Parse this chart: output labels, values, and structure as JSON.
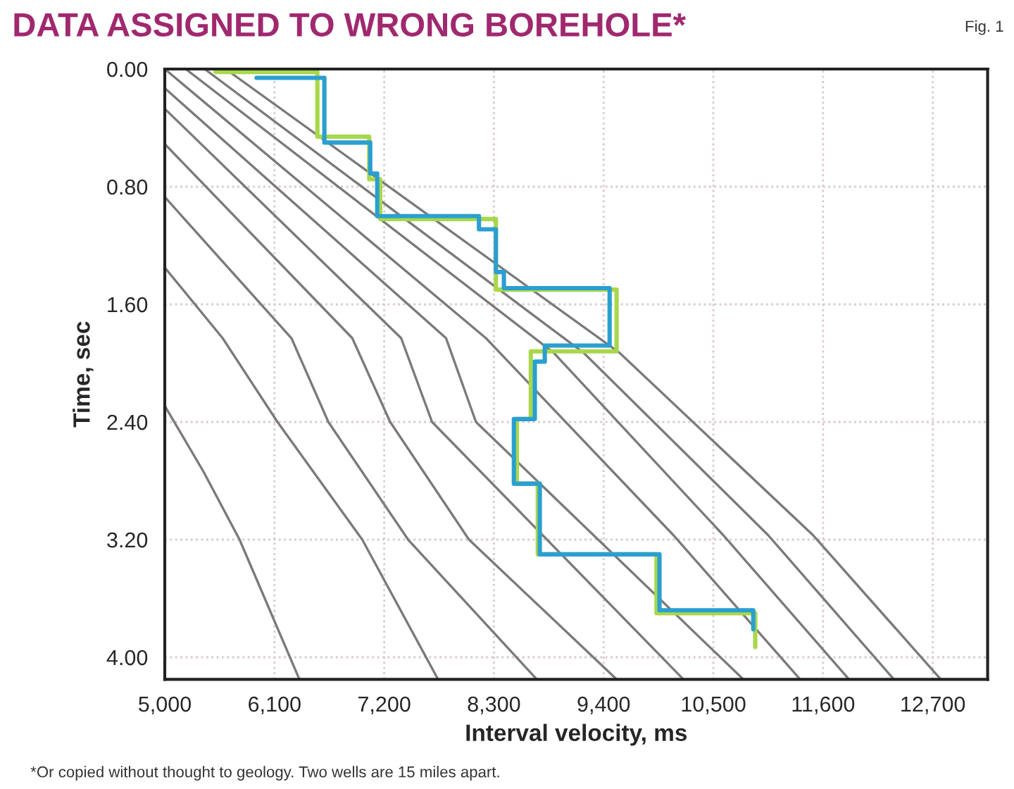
{
  "chart_data": {
    "type": "line",
    "title": "DATA ASSIGNED TO WRONG BOREHOLE*",
    "xlabel": "Interval velocity, ms",
    "ylabel": "Time, sec",
    "annotations": [
      "Fig. 1",
      "*Or copied without thought to geology. Two wells are 15 miles apart."
    ],
    "xlim": [
      5000,
      13250
    ],
    "ylim": [
      4.15,
      0
    ],
    "xticks": [
      {
        "value": 5000,
        "label": "5,000"
      },
      {
        "value": 6100,
        "label": "6,100"
      },
      {
        "value": 7200,
        "label": "7,200"
      },
      {
        "value": 8300,
        "label": "8,300"
      },
      {
        "value": 9400,
        "label": "9,400"
      },
      {
        "value": 10500,
        "label": "10,500"
      },
      {
        "value": 11600,
        "label": "11,600"
      },
      {
        "value": 12700,
        "label": "12,700"
      }
    ],
    "yticks": [
      {
        "value": 0,
        "label": "0.00"
      },
      {
        "value": 0.8,
        "label": "0.80"
      },
      {
        "value": 1.6,
        "label": "1.60"
      },
      {
        "value": 2.4,
        "label": "2.40"
      },
      {
        "value": 3.2,
        "label": "3.20"
      },
      {
        "value": 4.0,
        "label": "4.00"
      }
    ],
    "grid": true,
    "legend": false,
    "marker": "none",
    "line_style": "solid",
    "series": [
      {
        "color": "#7a7a7a",
        "x": [
          5000,
          5390,
          5750,
          6350
        ],
        "values": [
          2.29,
          2.74,
          3.2,
          4.15
        ]
      },
      {
        "color": "#7a7a7a",
        "x": [
          5000,
          5580,
          6130,
          6980,
          7740
        ],
        "values": [
          1.35,
          1.83,
          2.4,
          3.2,
          4.15
        ]
      },
      {
        "color": "#7a7a7a",
        "x": [
          5000,
          6270,
          6640,
          7440,
          8730
        ],
        "values": [
          0.87,
          1.83,
          2.4,
          3.2,
          4.15
        ]
      },
      {
        "color": "#7a7a7a",
        "x": [
          5000,
          6880,
          7260,
          8050,
          9530
        ],
        "values": [
          0.51,
          1.83,
          2.4,
          3.2,
          4.15
        ]
      },
      {
        "color": "#7a7a7a",
        "x": [
          5000,
          7370,
          7680,
          10200
        ],
        "values": [
          0.27,
          1.83,
          2.4,
          4.15
        ]
      },
      {
        "color": "#7a7a7a",
        "x": [
          5000,
          7820,
          8120,
          10800
        ],
        "values": [
          0.13,
          1.83,
          2.4,
          4.15
        ]
      },
      {
        "color": "#7a7a7a",
        "x": [
          5000,
          8220,
          10100,
          11370
        ],
        "values": [
          0,
          1.83,
          3.17,
          4.15
        ]
      },
      {
        "color": "#7a7a7a",
        "x": [
          5210,
          8900,
          10600,
          11860
        ],
        "values": [
          0,
          1.93,
          3.17,
          4.15
        ]
      },
      {
        "color": "#7a7a7a",
        "x": [
          5400,
          9200,
          11050,
          12310
        ],
        "values": [
          0,
          1.93,
          3.17,
          4.15
        ]
      },
      {
        "color": "#7a7a7a",
        "x": [
          5610,
          9560,
          11500,
          12780
        ],
        "values": [
          0,
          1.93,
          3.17,
          4.15
        ]
      },
      {
        "color": "#a8d84a",
        "x": [
          5510,
          6530,
          6530,
          7050,
          7050,
          7160,
          7160,
          8320,
          8320,
          9530,
          9530,
          8670,
          8670,
          8530,
          8530,
          8740,
          8740,
          9930,
          9930,
          10920,
          10920
        ],
        "values": [
          0.02,
          0.02,
          0.46,
          0.46,
          0.75,
          0.75,
          1.02,
          1.02,
          1.5,
          1.5,
          1.92,
          1.92,
          2.38,
          2.38,
          2.82,
          2.82,
          3.3,
          3.3,
          3.7,
          3.7,
          3.93
        ]
      },
      {
        "color": "#2a9fd0",
        "x": [
          5920,
          6600,
          6600,
          7060,
          7060,
          7130,
          7130,
          8150,
          8150,
          8320,
          8320,
          8400,
          8400,
          9460,
          9460,
          8810,
          8810,
          8710,
          8710,
          8500,
          8500,
          8760,
          8760,
          9960,
          9960,
          10900,
          10900
        ],
        "values": [
          0.06,
          0.06,
          0.5,
          0.5,
          0.71,
          0.71,
          1.0,
          1.0,
          1.09,
          1.09,
          1.38,
          1.38,
          1.49,
          1.49,
          1.88,
          1.88,
          1.99,
          1.99,
          2.38,
          2.38,
          2.82,
          2.82,
          3.3,
          3.3,
          3.68,
          3.68,
          3.81
        ]
      }
    ]
  }
}
